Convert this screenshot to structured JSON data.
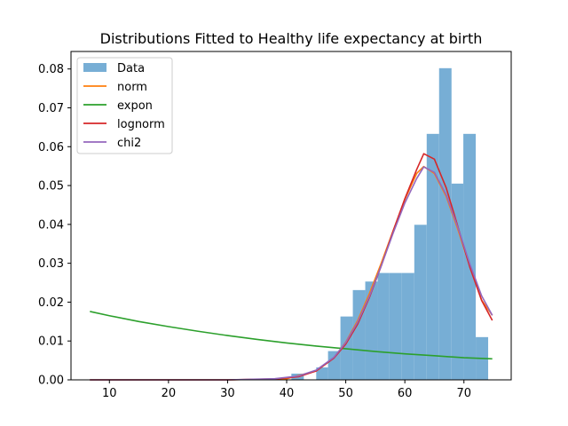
{
  "chart_data": {
    "type": "bar",
    "title": "Distributions Fitted to Healthy life expectancy at birth",
    "xlabel": "",
    "ylabel": "",
    "xlim": [
      3.5,
      78
    ],
    "ylim": [
      0,
      0.0845
    ],
    "xticks": [
      10,
      20,
      30,
      40,
      50,
      60,
      70
    ],
    "yticks": [
      0.0,
      0.01,
      0.02,
      0.03,
      0.04,
      0.05,
      0.06,
      0.07,
      0.08
    ],
    "ytick_labels": [
      "0.00",
      "0.01",
      "0.02",
      "0.03",
      "0.04",
      "0.05",
      "0.06",
      "0.07",
      "0.08"
    ],
    "grid": false,
    "legend_position": "top-left",
    "histogram": {
      "name": "Data",
      "color": "#77aed5",
      "bins": [
        {
          "x0": 40.8,
          "x1": 42.9,
          "value": 0.0016
        },
        {
          "x0": 42.9,
          "x1": 45.0,
          "value": 0.0
        },
        {
          "x0": 45.0,
          "x1": 47.0,
          "value": 0.0032
        },
        {
          "x0": 47.0,
          "x1": 49.1,
          "value": 0.0074
        },
        {
          "x0": 49.1,
          "x1": 51.2,
          "value": 0.0163
        },
        {
          "x0": 51.2,
          "x1": 53.3,
          "value": 0.0231
        },
        {
          "x0": 53.3,
          "x1": 55.4,
          "value": 0.0253
        },
        {
          "x0": 55.4,
          "x1": 57.4,
          "value": 0.0275
        },
        {
          "x0": 57.4,
          "x1": 59.5,
          "value": 0.0275
        },
        {
          "x0": 59.5,
          "x1": 61.6,
          "value": 0.0275
        },
        {
          "x0": 61.6,
          "x1": 63.7,
          "value": 0.0399
        },
        {
          "x0": 63.7,
          "x1": 65.8,
          "value": 0.0633
        },
        {
          "x0": 65.8,
          "x1": 67.9,
          "value": 0.0802
        },
        {
          "x0": 67.9,
          "x1": 69.9,
          "value": 0.0505
        },
        {
          "x0": 69.9,
          "x1": 72.0,
          "value": 0.0633
        },
        {
          "x0": 72.0,
          "x1": 74.1,
          "value": 0.011
        }
      ]
    },
    "series": [
      {
        "name": "norm",
        "color": "#ff7f0e",
        "x": [
          6.7,
          20,
          30,
          40,
          45,
          48,
          50,
          52,
          54,
          56,
          58,
          60,
          62,
          63.2,
          65,
          67,
          69,
          71,
          73,
          74.8
        ],
        "y": [
          0.0,
          0.0,
          0.0,
          0.0003,
          0.0023,
          0.0057,
          0.0097,
          0.0152,
          0.0222,
          0.03,
          0.0383,
          0.0464,
          0.0531,
          0.0549,
          0.0531,
          0.0472,
          0.0386,
          0.0292,
          0.0205,
          0.0166
        ]
      },
      {
        "name": "expon",
        "color": "#2ca02c",
        "x": [
          6.7,
          10,
          15,
          20,
          25,
          30,
          35,
          40,
          45,
          50,
          55,
          60,
          65,
          70,
          74.8
        ],
        "y": [
          0.0176,
          0.0165,
          0.015,
          0.0137,
          0.0125,
          0.0114,
          0.0104,
          0.0095,
          0.0087,
          0.008,
          0.0073,
          0.0067,
          0.0062,
          0.0057,
          0.0054
        ]
      },
      {
        "name": "lognorm",
        "color": "#d62728",
        "x": [
          6.7,
          20,
          30,
          38,
          42,
          45,
          48,
          50,
          52,
          54,
          56,
          58,
          60,
          62,
          63.2,
          65,
          67,
          69,
          71,
          73,
          74.8
        ],
        "y": [
          0.0,
          0.0,
          0.0,
          0.0002,
          0.0008,
          0.0023,
          0.0056,
          0.0092,
          0.0143,
          0.0212,
          0.0293,
          0.0382,
          0.0466,
          0.0541,
          0.0582,
          0.0568,
          0.0494,
          0.0393,
          0.029,
          0.0204,
          0.0153
        ]
      },
      {
        "name": "chi2",
        "color": "#9467bd",
        "x": [
          6.7,
          20,
          30,
          38,
          42,
          45,
          48,
          50,
          52,
          54,
          56,
          58,
          60,
          62,
          63.2,
          65,
          67,
          69,
          71,
          73,
          74.8
        ],
        "y": [
          0.0,
          0.0,
          0.0,
          0.0003,
          0.001,
          0.0025,
          0.0058,
          0.0096,
          0.0148,
          0.0215,
          0.0293,
          0.0377,
          0.0455,
          0.0518,
          0.0548,
          0.0534,
          0.0476,
          0.0391,
          0.0298,
          0.0216,
          0.0166
        ]
      }
    ],
    "legend": [
      {
        "label": "Data",
        "kind": "patch",
        "color": "#77aed5"
      },
      {
        "label": "norm",
        "kind": "line",
        "color": "#ff7f0e"
      },
      {
        "label": "expon",
        "kind": "line",
        "color": "#2ca02c"
      },
      {
        "label": "lognorm",
        "kind": "line",
        "color": "#d62728"
      },
      {
        "label": "chi2",
        "kind": "line",
        "color": "#9467bd"
      }
    ]
  }
}
